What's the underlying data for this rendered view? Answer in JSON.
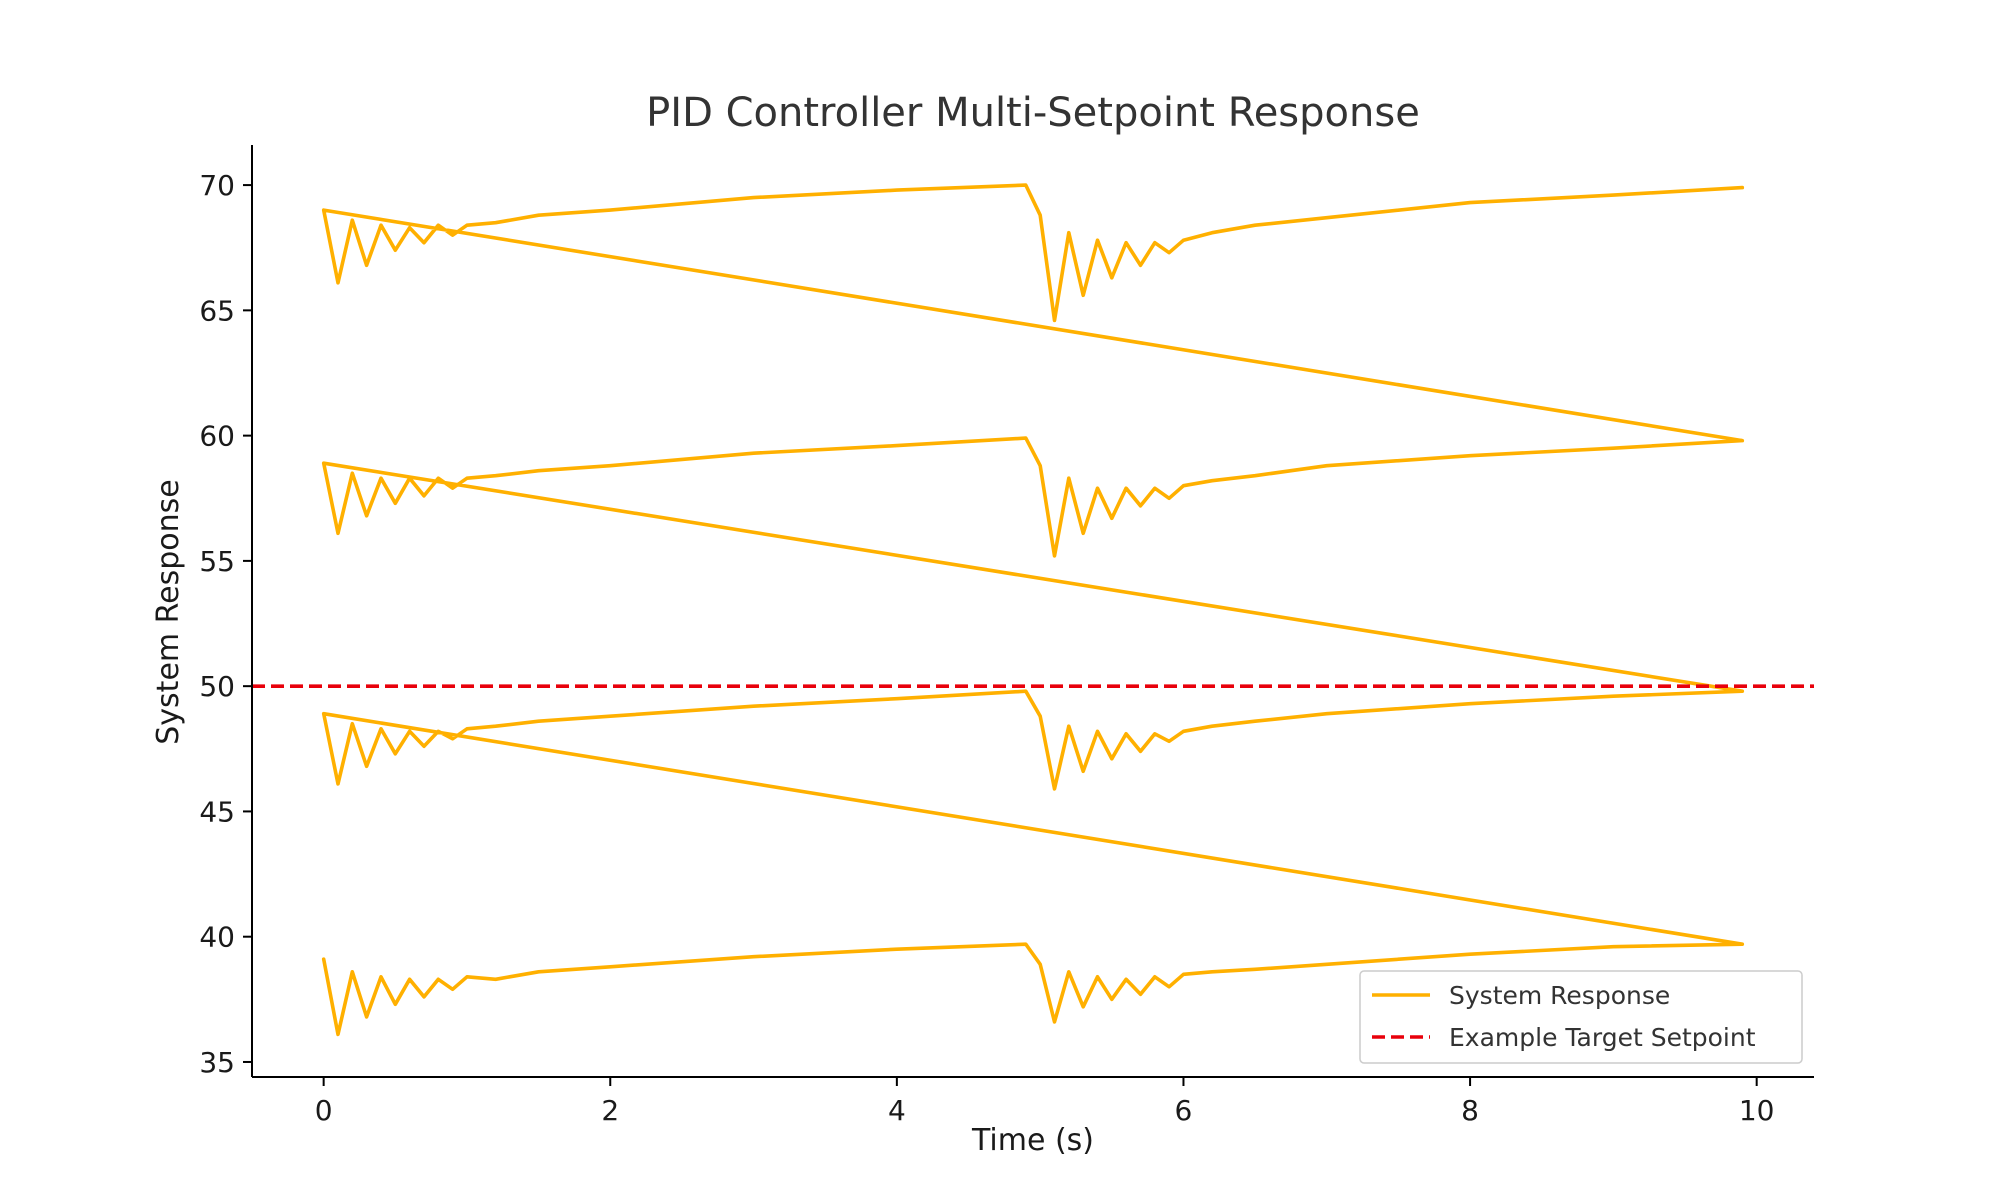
{
  "chart_data": {
    "type": "line",
    "title": "PID Controller Multi-Setpoint Response",
    "xlabel": "Time (s)",
    "ylabel": "System Response",
    "xlim": [
      -0.5,
      10.4
    ],
    "ylim": [
      34.4,
      71.6
    ],
    "xticks": [
      0,
      2,
      4,
      6,
      8,
      10
    ],
    "yticks": [
      35,
      40,
      45,
      50,
      55,
      60,
      65,
      70
    ],
    "grid": false,
    "legend_position": "lower-right",
    "colors": {
      "response": "#FFB000",
      "setpoint": "#E8000B",
      "axis": "#000000"
    },
    "series": [
      {
        "name": "System Response",
        "style": "solid",
        "x": [
          0,
          0.1,
          0.2,
          0.3,
          0.4,
          0.5,
          0.6,
          0.7,
          0.8,
          0.9,
          1.0,
          1.2,
          1.5,
          2.0,
          3.0,
          4.0,
          4.9,
          5.0,
          5.1,
          5.2,
          5.3,
          5.4,
          5.5,
          5.6,
          5.7,
          5.8,
          5.9,
          6.0,
          6.2,
          6.5,
          7.0,
          8.0,
          9.0,
          9.9,
          0,
          0.1,
          0.2,
          0.3,
          0.4,
          0.5,
          0.6,
          0.7,
          0.8,
          0.9,
          1.0,
          1.2,
          1.5,
          2.0,
          3.0,
          4.0,
          4.9,
          5.0,
          5.1,
          5.2,
          5.3,
          5.4,
          5.5,
          5.6,
          5.7,
          5.8,
          5.9,
          6.0,
          6.2,
          6.5,
          7.0,
          8.0,
          9.0,
          9.9,
          0,
          0.1,
          0.2,
          0.3,
          0.4,
          0.5,
          0.6,
          0.7,
          0.8,
          0.9,
          1.0,
          1.2,
          1.5,
          2.0,
          3.0,
          4.0,
          4.9,
          5.0,
          5.1,
          5.2,
          5.3,
          5.4,
          5.5,
          5.6,
          5.7,
          5.8,
          5.9,
          6.0,
          6.2,
          6.5,
          7.0,
          8.0,
          9.0,
          9.9,
          0,
          0.1,
          0.2,
          0.3,
          0.4,
          0.5,
          0.6,
          0.7,
          0.8,
          0.9,
          1.0,
          1.2,
          1.5,
          2.0,
          3.0,
          4.0,
          4.9,
          5.0,
          5.1,
          5.2,
          5.3,
          5.4,
          5.5,
          5.6,
          5.7,
          5.8,
          5.9,
          6.0,
          6.2,
          6.5,
          7.0,
          8.0,
          9.0,
          9.9
        ],
        "y": [
          39.1,
          36.1,
          38.6,
          36.8,
          38.4,
          37.3,
          38.3,
          37.6,
          38.3,
          37.9,
          38.4,
          38.3,
          38.6,
          38.8,
          39.2,
          39.5,
          39.7,
          38.9,
          36.6,
          38.6,
          37.2,
          38.4,
          37.5,
          38.3,
          37.7,
          38.4,
          38.0,
          38.5,
          38.6,
          38.7,
          38.9,
          39.3,
          39.6,
          39.7,
          48.9,
          46.1,
          48.5,
          46.8,
          48.3,
          47.3,
          48.2,
          47.6,
          48.2,
          47.9,
          48.3,
          48.4,
          48.6,
          48.8,
          49.2,
          49.5,
          49.8,
          48.8,
          45.9,
          48.4,
          46.6,
          48.2,
          47.1,
          48.1,
          47.4,
          48.1,
          47.8,
          48.2,
          48.4,
          48.6,
          48.9,
          49.3,
          49.6,
          49.8,
          58.9,
          56.1,
          58.5,
          56.8,
          58.3,
          57.3,
          58.3,
          57.6,
          58.3,
          57.9,
          58.3,
          58.4,
          58.6,
          58.8,
          59.3,
          59.6,
          59.9,
          58.8,
          55.2,
          58.3,
          56.1,
          57.9,
          56.7,
          57.9,
          57.2,
          57.9,
          57.5,
          58.0,
          58.2,
          58.4,
          58.8,
          59.2,
          59.5,
          59.8,
          69.0,
          66.1,
          68.6,
          66.8,
          68.4,
          67.4,
          68.3,
          67.7,
          68.4,
          68.0,
          68.4,
          68.5,
          68.8,
          69.0,
          69.5,
          69.8,
          70.0,
          68.8,
          64.6,
          68.1,
          65.6,
          67.8,
          66.3,
          67.7,
          66.8,
          67.7,
          67.3,
          67.8,
          68.1,
          68.4,
          68.7,
          69.3,
          69.6,
          69.9
        ]
      },
      {
        "name": "Example Target Setpoint",
        "style": "dashed",
        "x": [
          -0.5,
          10.4
        ],
        "y": [
          50,
          50
        ]
      }
    ]
  }
}
